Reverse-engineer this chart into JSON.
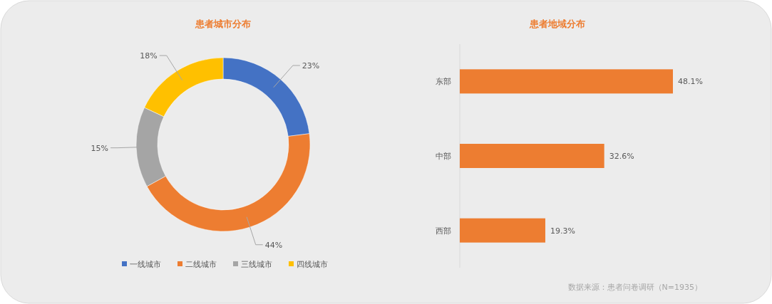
{
  "chart_data": [
    {
      "type": "donut",
      "title": "患者城市分布",
      "categories": [
        "一线城市",
        "二线城市",
        "三线城市",
        "四线城市"
      ],
      "values": [
        23,
        44,
        15,
        18
      ],
      "colors": [
        "#4472c4",
        "#ed7d31",
        "#a5a5a5",
        "#ffc000"
      ],
      "value_labels": [
        "23%",
        "44%",
        "15%",
        "18%"
      ],
      "legend": "bottom"
    },
    {
      "type": "bar",
      "orientation": "horizontal",
      "title": "患者地域分布",
      "categories": [
        "东部",
        "中部",
        "西部"
      ],
      "values": [
        48.1,
        32.6,
        19.3
      ],
      "color": "#ed7d31",
      "value_labels": [
        "48.1%",
        "32.6%",
        "19.3%"
      ],
      "annotations": [
        "数据来源：患者问卷调研（N=1935）"
      ]
    }
  ]
}
